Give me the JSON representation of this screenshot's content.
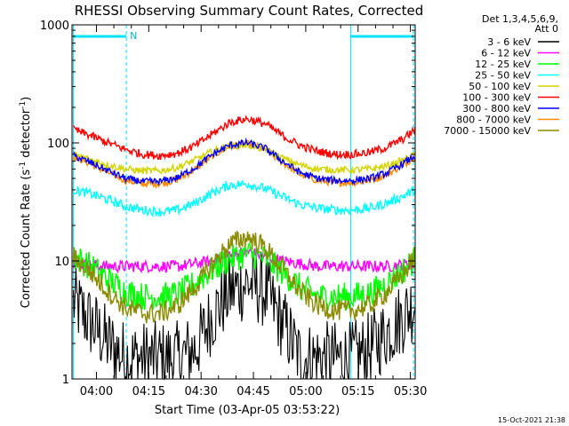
{
  "chart_data": {
    "type": "line",
    "title": "RHESSI Observing Summary Count Rates, Corrected",
    "xlabel": "Start Time (03-Apr-05 03:53:22)",
    "ylabel_main": "Corrected Count Rate (s",
    "ylabel_sup1": "-1",
    "ylabel_mid": " detector",
    "ylabel_sup2": "-1",
    "ylabel_end": ")",
    "yscale": "log",
    "ylim": [
      1,
      1000
    ],
    "xlim_minutes": [
      -0.37,
      98.0
    ],
    "x_ticks": [
      {
        "label": "04:00",
        "min": 6.63
      },
      {
        "label": "04:15",
        "min": 21.63
      },
      {
        "label": "04:30",
        "min": 36.63
      },
      {
        "label": "04:45",
        "min": 51.63
      },
      {
        "label": "05:00",
        "min": 66.63
      },
      {
        "label": "05:15",
        "min": 81.63
      },
      {
        "label": "05:30",
        "min": 96.63
      }
    ],
    "y_ticks": [
      {
        "label": "1",
        "value": 1
      },
      {
        "label": "10",
        "value": 10
      },
      {
        "label": "100",
        "value": 100
      },
      {
        "label": "1000",
        "value": 1000
      }
    ],
    "legend_header": [
      "Det 1,3,4,5,6,9,",
      "Att 0"
    ],
    "legend_position": "right",
    "annotation_flag": "N",
    "timestamp": "15-Oct-2021 21:38",
    "markers": {
      "vertical_solid_min": [
        0.0,
        79.5
      ],
      "vertical_dashed_min": [
        15.2,
        97.5
      ],
      "top_bars": [
        [
          0.0,
          15.2
        ],
        [
          79.5,
          97.5
        ]
      ]
    },
    "series": [
      {
        "name": "3 - 6 keV",
        "color": "#000000",
        "x": [
          0,
          5,
          10,
          15,
          20,
          25,
          30,
          35,
          40,
          45,
          50,
          55,
          60,
          65,
          70,
          75,
          80,
          85,
          90,
          95,
          98
        ],
        "y": [
          4.5,
          3.0,
          2.0,
          1.5,
          1.5,
          1.5,
          1.5,
          1.8,
          3.5,
          5.5,
          6.5,
          5.5,
          3.0,
          1.5,
          1.5,
          1.5,
          1.5,
          1.8,
          2.5,
          3.5,
          4.5
        ]
      },
      {
        "name": "6 - 12 keV",
        "color": "#ff00ff",
        "x": [
          0,
          10,
          20,
          30,
          40,
          45,
          50,
          55,
          60,
          70,
          80,
          90,
          98
        ],
        "y": [
          9.5,
          9.0,
          9.0,
          9.0,
          10,
          11,
          12,
          11,
          10,
          9,
          9,
          9,
          9.5
        ]
      },
      {
        "name": "12 - 25 keV",
        "color": "#00ff00",
        "x": [
          0,
          5,
          10,
          15,
          20,
          25,
          30,
          35,
          40,
          45,
          50,
          55,
          60,
          65,
          70,
          75,
          80,
          85,
          90,
          95,
          98
        ],
        "y": [
          11,
          9,
          7,
          5.5,
          5,
          5,
          5.2,
          6.5,
          8.5,
          10.5,
          11.5,
          10.5,
          8,
          6,
          5,
          5,
          5,
          5.3,
          6.5,
          8.5,
          10.5
        ]
      },
      {
        "name": "25 - 50 keV",
        "color": "#00ffff",
        "x": [
          0,
          5,
          10,
          15,
          20,
          25,
          30,
          35,
          40,
          45,
          50,
          55,
          60,
          65,
          70,
          75,
          80,
          85,
          90,
          95,
          98
        ],
        "y": [
          40,
          37,
          33,
          29,
          27,
          26,
          27,
          31,
          38,
          44,
          45,
          41,
          35,
          30,
          28,
          27,
          27,
          28,
          31,
          36,
          40
        ]
      },
      {
        "name": "50 - 100 keV",
        "color": "#d4d400",
        "x": [
          0,
          5,
          10,
          15,
          20,
          25,
          30,
          35,
          40,
          45,
          50,
          55,
          60,
          65,
          70,
          75,
          80,
          85,
          90,
          95,
          98
        ],
        "y": [
          80,
          72,
          65,
          60,
          58,
          58,
          62,
          72,
          85,
          95,
          96,
          88,
          74,
          65,
          60,
          59,
          59,
          60,
          64,
          72,
          80
        ]
      },
      {
        "name": "100 - 300 keV",
        "color": "#ff0000",
        "x": [
          0,
          5,
          10,
          15,
          20,
          25,
          30,
          35,
          40,
          45,
          50,
          55,
          60,
          65,
          70,
          75,
          80,
          85,
          90,
          95,
          98
        ],
        "y": [
          130,
          115,
          100,
          88,
          80,
          78,
          82,
          95,
          120,
          150,
          160,
          145,
          115,
          95,
          85,
          80,
          80,
          83,
          92,
          110,
          130
        ]
      },
      {
        "name": "300 - 800 keV",
        "color": "#0000ff",
        "x": [
          0,
          5,
          10,
          15,
          20,
          25,
          30,
          35,
          40,
          45,
          50,
          55,
          60,
          65,
          70,
          75,
          80,
          85,
          90,
          95,
          98
        ],
        "y": [
          78,
          68,
          58,
          50,
          47,
          47,
          51,
          62,
          80,
          96,
          100,
          90,
          70,
          56,
          50,
          48,
          48,
          50,
          56,
          68,
          78
        ]
      },
      {
        "name": "800 - 7000 keV",
        "color": "#ff8c00",
        "x": [
          0,
          5,
          10,
          15,
          20,
          25,
          30,
          35,
          40,
          45,
          50,
          55,
          60,
          65,
          70,
          75,
          80,
          85,
          90,
          95,
          98
        ],
        "y": [
          77,
          66,
          56,
          48,
          45,
          45,
          49,
          60,
          78,
          94,
          98,
          88,
          68,
          54,
          48,
          46,
          46,
          48,
          54,
          66,
          77
        ]
      },
      {
        "name": "7000 - 15000 keV",
        "color": "#8b8b00",
        "x": [
          0,
          5,
          10,
          15,
          20,
          25,
          30,
          35,
          40,
          45,
          50,
          55,
          60,
          65,
          70,
          75,
          80,
          85,
          90,
          95,
          98
        ],
        "y": [
          11,
          8,
          5.5,
          4,
          3.6,
          3.6,
          4.2,
          6,
          9.5,
          14,
          16,
          13,
          8.5,
          5.5,
          4.2,
          3.8,
          3.8,
          4.2,
          5.5,
          8,
          11
        ]
      }
    ]
  }
}
